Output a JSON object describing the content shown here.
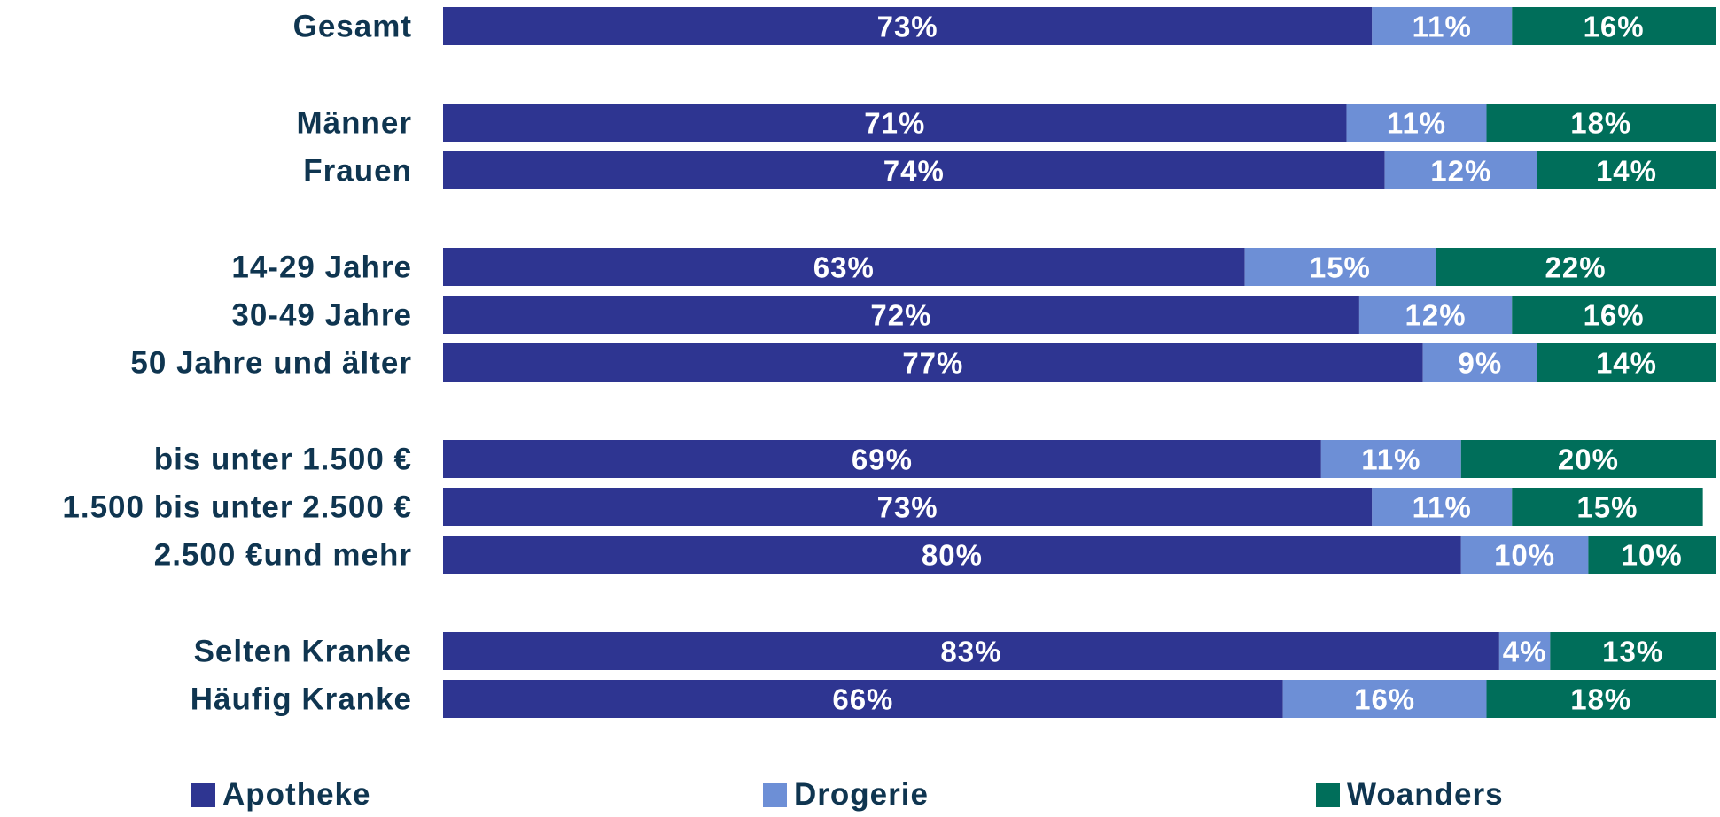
{
  "chart_data": {
    "type": "bar",
    "orientation": "horizontal",
    "stacked": "100%",
    "title": "",
    "xlabel": "",
    "ylabel": "",
    "xlim": [
      0,
      100
    ],
    "grid": false,
    "legend_position": "bottom",
    "value_suffix": "%",
    "categories": [
      "Gesamt",
      "Männer",
      "Frauen",
      "14-29 Jahre",
      "30-49 Jahre",
      "50 Jahre und älter",
      "bis unter 1.500 €",
      "1.500 bis unter 2.500 €",
      "2.500 €und mehr",
      "Selten Kranke",
      "Häufig Kranke"
    ],
    "groups": [
      [
        0
      ],
      [
        1,
        2
      ],
      [
        3,
        4,
        5
      ],
      [
        6,
        7,
        8
      ],
      [
        9,
        10
      ]
    ],
    "series": [
      {
        "name": "Apotheke",
        "color": "#2e3591",
        "values": [
          73,
          71,
          74,
          63,
          72,
          77,
          69,
          73,
          80,
          83,
          66
        ]
      },
      {
        "name": "Drogerie",
        "color": "#6d8fd6",
        "values": [
          11,
          11,
          12,
          15,
          12,
          9,
          11,
          11,
          10,
          4,
          16
        ]
      },
      {
        "name": "Woanders",
        "color": "#006e5a",
        "values": [
          16,
          18,
          14,
          22,
          16,
          14,
          20,
          15,
          10,
          13,
          18
        ]
      }
    ],
    "label_color": "#0f3550",
    "value_label_color": "#ffffff"
  }
}
